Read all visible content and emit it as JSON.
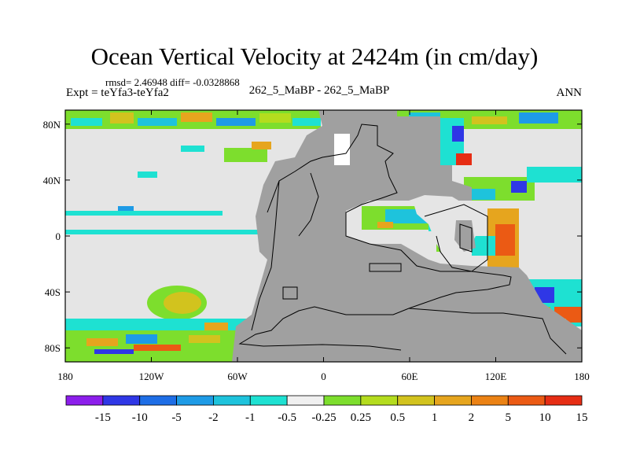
{
  "title": "Ocean Vertical Velocity at 2424m (in cm/day)",
  "stats": "rmsd= 2.46948 diff= -0.0328868",
  "experiment": "Expt = teYfa3-teYfa2",
  "case": "262_5_MaBP - 262_5_MaBP",
  "season": "ANN",
  "map": {
    "projection": "cylindrical equidistant",
    "lon_range": [
      -180,
      180
    ],
    "lat_range": [
      -90,
      90
    ],
    "land_color": "#a0a0a0",
    "no_change_color": "#e5e5e5",
    "lat_ticks": [
      {
        "value": 80,
        "label": "80N"
      },
      {
        "value": 40,
        "label": "40N"
      },
      {
        "value": 0,
        "label": "0"
      },
      {
        "value": -40,
        "label": "40S"
      },
      {
        "value": -80,
        "label": "80S"
      }
    ],
    "lon_ticks": [
      {
        "value": -180,
        "label": "180"
      },
      {
        "value": -120,
        "label": "120W"
      },
      {
        "value": -60,
        "label": "60W"
      },
      {
        "value": 0,
        "label": "0"
      },
      {
        "value": 60,
        "label": "60E"
      },
      {
        "value": 120,
        "label": "120E"
      },
      {
        "value": 180,
        "label": "180"
      }
    ]
  },
  "colorbar": {
    "colors": [
      "#8c1eeb",
      "#2f37e6",
      "#1e6ee6",
      "#1e9be6",
      "#1ec3dc",
      "#1ee1d2",
      "#f0f0f0",
      "#7dde2d",
      "#b4dc1e",
      "#d2c31e",
      "#e6a51e",
      "#eb8214",
      "#eb5a14",
      "#e62d14"
    ],
    "labels": [
      "-15",
      "-10",
      "-5",
      "-2",
      "-1",
      "-0.5",
      "-0.25",
      "0.25",
      "0.5",
      "1",
      "2",
      "5",
      "10",
      "15"
    ]
  }
}
